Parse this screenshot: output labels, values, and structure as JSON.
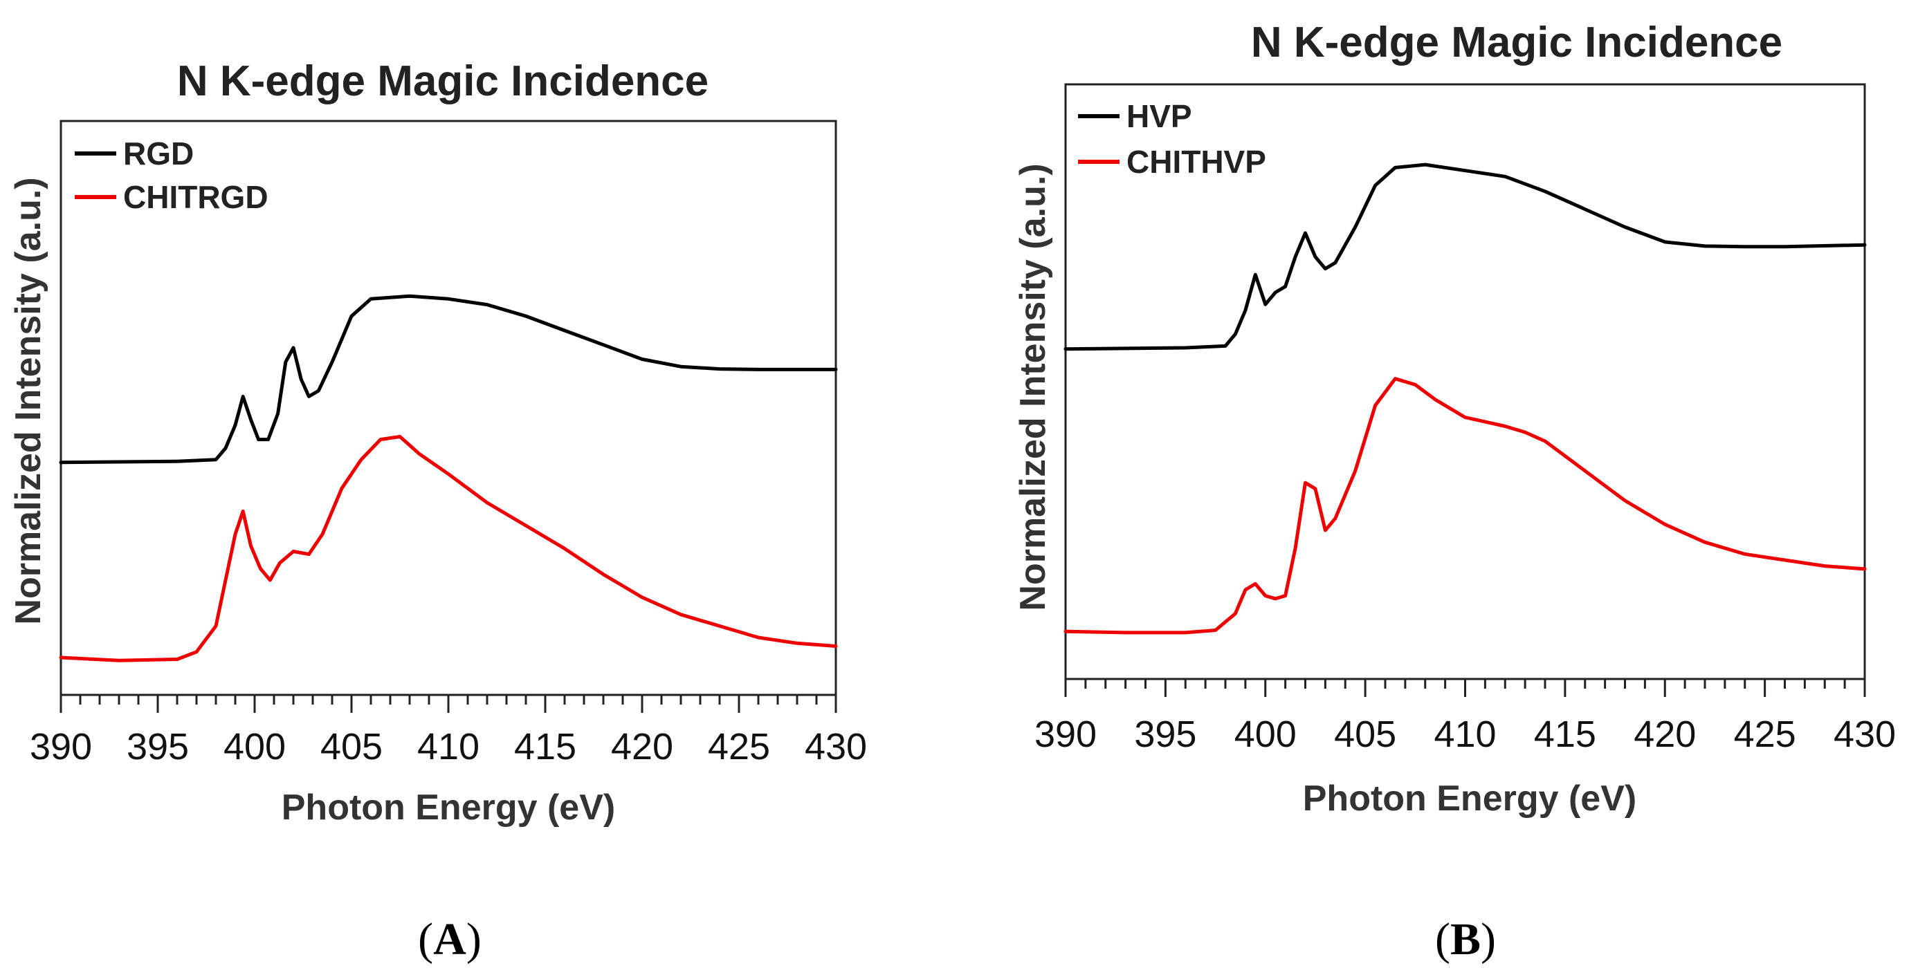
{
  "chart_data": [
    {
      "type": "line",
      "panel": "A",
      "title": "N K-edge Magic Incidence",
      "xlabel": "Photon Energy (eV)",
      "ylabel": "Normalized Intensity (a.u.)",
      "xlim": [
        390,
        430
      ],
      "ylim": [
        0,
        1
      ],
      "xticks": [
        390,
        395,
        400,
        405,
        410,
        415,
        420,
        425,
        430
      ],
      "xticklabels": [
        "390",
        "395",
        "400",
        "405",
        "410",
        "415",
        "420",
        "425",
        "430"
      ],
      "legend": "top-left",
      "series": [
        {
          "name": "RGD",
          "color": "#000000",
          "x": [
            390,
            396,
            398,
            398.5,
            399,
            399.4,
            399.8,
            400.2,
            400.7,
            401.2,
            401.6,
            402,
            402.4,
            402.8,
            403.3,
            404,
            405,
            406,
            408,
            410,
            412,
            414,
            416,
            418,
            420,
            422,
            424,
            426,
            430
          ],
          "y": [
            0.405,
            0.407,
            0.41,
            0.43,
            0.47,
            0.52,
            0.48,
            0.445,
            0.445,
            0.49,
            0.58,
            0.605,
            0.55,
            0.52,
            0.53,
            0.58,
            0.66,
            0.69,
            0.695,
            0.69,
            0.68,
            0.66,
            0.635,
            0.61,
            0.585,
            0.572,
            0.568,
            0.567,
            0.567
          ]
        },
        {
          "name": "CHITRGD",
          "color": "#ee0000",
          "x": [
            390,
            393,
            396,
            397,
            398,
            398.5,
            399,
            399.4,
            399.8,
            400.3,
            400.8,
            401.3,
            402,
            402.8,
            403.5,
            404.5,
            405.5,
            406.5,
            407.5,
            408.5,
            410,
            412,
            414,
            416,
            418,
            420,
            422,
            424,
            426,
            428,
            430
          ],
          "y": [
            0.065,
            0.06,
            0.062,
            0.075,
            0.12,
            0.2,
            0.28,
            0.32,
            0.26,
            0.22,
            0.2,
            0.23,
            0.25,
            0.245,
            0.28,
            0.36,
            0.41,
            0.445,
            0.45,
            0.42,
            0.385,
            0.335,
            0.295,
            0.255,
            0.21,
            0.17,
            0.14,
            0.12,
            0.1,
            0.09,
            0.085
          ]
        }
      ]
    },
    {
      "type": "line",
      "panel": "B",
      "title": "N K-edge Magic Incidence",
      "xlabel": "Photon Energy (eV)",
      "ylabel": "Normalized Intensity (a.u.)",
      "xlim": [
        390,
        430
      ],
      "ylim": [
        0,
        1
      ],
      "xticks": [
        390,
        395,
        400,
        405,
        410,
        415,
        420,
        425,
        430
      ],
      "xticklabels": [
        "390",
        "395",
        "400",
        "405",
        "410",
        "415",
        "420",
        "425",
        "430"
      ],
      "legend": "top-left",
      "series": [
        {
          "name": "HVP",
          "color": "#000000",
          "x": [
            390,
            396,
            398,
            398.5,
            399,
            399.5,
            400,
            400.5,
            401,
            401.5,
            402,
            402.5,
            403,
            403.5,
            404.5,
            405.5,
            406.5,
            408,
            410,
            412,
            414,
            416,
            418,
            420,
            422,
            424,
            426,
            430
          ],
          "y": [
            0.555,
            0.557,
            0.56,
            0.58,
            0.62,
            0.68,
            0.63,
            0.65,
            0.66,
            0.71,
            0.75,
            0.71,
            0.69,
            0.7,
            0.76,
            0.83,
            0.86,
            0.865,
            0.855,
            0.845,
            0.82,
            0.79,
            0.76,
            0.735,
            0.728,
            0.727,
            0.727,
            0.73
          ]
        },
        {
          "name": "CHITHVP",
          "color": "#ee0000",
          "x": [
            390,
            393,
            396,
            397.5,
            398.5,
            399,
            399.5,
            400,
            400.5,
            401,
            401.5,
            402,
            402.5,
            403,
            403.5,
            404.5,
            405.5,
            406.5,
            407.5,
            408.5,
            410,
            412,
            413,
            414,
            416,
            418,
            420,
            422,
            424,
            426,
            428,
            430
          ],
          "y": [
            0.08,
            0.078,
            0.078,
            0.082,
            0.11,
            0.15,
            0.16,
            0.14,
            0.135,
            0.14,
            0.22,
            0.33,
            0.32,
            0.25,
            0.27,
            0.35,
            0.46,
            0.505,
            0.495,
            0.47,
            0.44,
            0.425,
            0.415,
            0.4,
            0.35,
            0.3,
            0.26,
            0.23,
            0.21,
            0.2,
            0.19,
            0.185
          ]
        }
      ]
    }
  ],
  "panel_labels": {
    "a_open": "(",
    "a_letter": "A",
    "a_close": ")",
    "b_open": "(",
    "b_letter": "B",
    "b_close": ")"
  }
}
